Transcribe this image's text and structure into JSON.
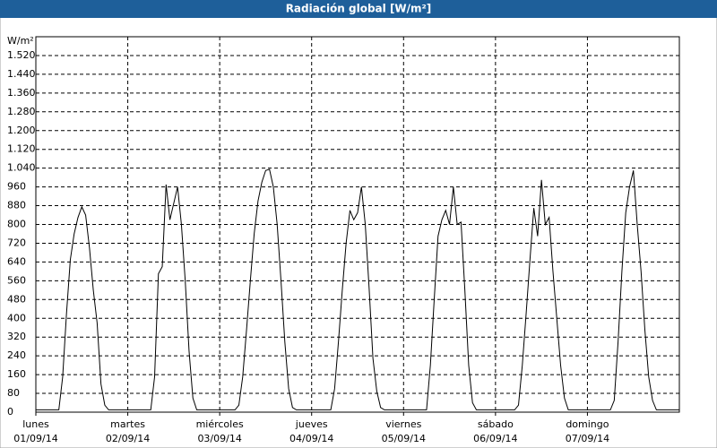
{
  "chart_data": {
    "type": "line",
    "title": "Radiación global [W/m²]",
    "y_axis_label": "W/m²",
    "x": [
      0,
      1,
      2,
      3,
      4,
      5,
      6,
      7,
      8,
      9,
      10,
      11,
      12,
      13,
      14,
      15,
      16,
      17,
      18,
      19,
      20,
      21,
      22,
      23,
      24,
      25,
      26,
      27,
      28,
      29,
      30,
      31,
      32,
      33,
      34,
      35,
      36,
      37,
      38,
      39,
      40,
      41,
      42,
      43,
      44,
      45,
      46,
      47,
      48,
      49,
      50,
      51,
      52,
      53,
      54,
      55,
      56,
      57,
      58,
      59,
      60,
      61,
      62,
      63,
      64,
      65,
      66,
      67,
      68,
      69,
      70,
      71,
      72,
      73,
      74,
      75,
      76,
      77,
      78,
      79,
      80,
      81,
      82,
      83,
      84,
      85,
      86,
      87,
      88,
      89,
      90,
      91,
      92,
      93,
      94,
      95,
      96,
      97,
      98,
      99,
      100,
      101,
      102,
      103,
      104,
      105,
      106,
      107,
      108,
      109,
      110,
      111,
      112,
      113,
      114,
      115,
      116,
      117,
      118,
      119,
      120,
      121,
      122,
      123,
      124,
      125,
      126,
      127,
      128,
      129,
      130,
      131,
      132,
      133,
      134,
      135,
      136,
      137,
      138,
      139,
      140,
      141,
      142,
      143,
      144,
      145,
      146,
      147,
      148,
      149,
      150,
      151,
      152,
      153,
      154,
      155,
      156,
      157,
      158,
      159,
      160,
      161,
      162,
      163,
      164,
      165,
      166,
      167,
      168
    ],
    "series": [
      {
        "color": "#000000",
        "values": [
          10,
          10,
          10,
          10,
          10,
          10,
          10,
          150,
          420,
          650,
          760,
          830,
          875,
          840,
          700,
          520,
          380,
          120,
          30,
          10,
          10,
          10,
          10,
          10,
          10,
          10,
          10,
          10,
          10,
          10,
          10,
          150,
          590,
          620,
          970,
          820,
          890,
          960,
          800,
          560,
          260,
          60,
          10,
          10,
          10,
          10,
          10,
          10,
          10,
          10,
          10,
          10,
          10,
          30,
          150,
          350,
          560,
          760,
          900,
          980,
          1030,
          1035,
          960,
          800,
          560,
          300,
          100,
          20,
          10,
          10,
          10,
          10,
          10,
          10,
          10,
          10,
          10,
          10,
          100,
          300,
          520,
          720,
          860,
          820,
          850,
          960,
          800,
          530,
          230,
          90,
          20,
          10,
          10,
          10,
          10,
          10,
          10,
          10,
          10,
          10,
          10,
          10,
          10,
          200,
          480,
          750,
          820,
          860,
          800,
          960,
          800,
          810,
          520,
          200,
          40,
          10,
          10,
          10,
          10,
          10,
          10,
          10,
          10,
          10,
          10,
          10,
          30,
          200,
          420,
          650,
          870,
          750,
          990,
          800,
          830,
          600,
          400,
          200,
          60,
          10,
          10,
          10,
          10,
          10,
          10,
          10,
          10,
          10,
          10,
          10,
          10,
          50,
          300,
          600,
          850,
          960,
          1030,
          800,
          600,
          350,
          150,
          50,
          10,
          10,
          10,
          10,
          10,
          10,
          10
        ]
      }
    ],
    "xlim": [
      0,
      168
    ],
    "xticks": [
      {
        "value": 0,
        "label": [
          "lunes",
          "01/09/14"
        ]
      },
      {
        "value": 24,
        "label": [
          "martes",
          "02/09/14"
        ]
      },
      {
        "value": 48,
        "label": [
          "miércoles",
          "03/09/14"
        ]
      },
      {
        "value": 72,
        "label": [
          "jueves",
          "04/09/14"
        ]
      },
      {
        "value": 96,
        "label": [
          "viernes",
          "05/09/14"
        ]
      },
      {
        "value": 120,
        "label": [
          "sábado",
          "06/09/14"
        ]
      },
      {
        "value": 144,
        "label": [
          "domingo",
          "07/09/14"
        ]
      }
    ],
    "ylim": [
      0,
      1600
    ],
    "yticks": [
      0,
      80,
      160,
      240,
      320,
      400,
      480,
      560,
      640,
      720,
      800,
      880,
      960,
      {
        "value": 1040,
        "label": "1.040"
      },
      {
        "value": 1120,
        "label": "1.120"
      },
      {
        "value": 1200,
        "label": "1.200"
      },
      {
        "value": 1280,
        "label": "1.280"
      },
      {
        "value": 1360,
        "label": "1.360"
      },
      {
        "value": 1440,
        "label": "1.440"
      },
      {
        "value": 1520,
        "label": "1.520"
      }
    ],
    "grid": true
  }
}
